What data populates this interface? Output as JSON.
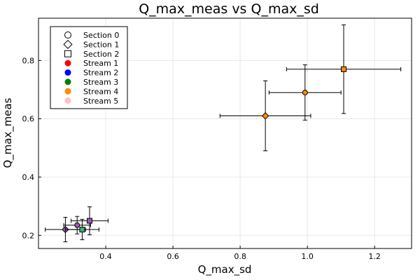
{
  "chart_data": {
    "type": "scatter",
    "title": "Q_max_meas vs Q_max_sd",
    "xlabel": "Q_max_sd",
    "ylabel": "Q_max_meas",
    "xlim": [
      0.2,
      1.31
    ],
    "ylim": [
      0.155,
      0.945
    ],
    "xticks": [
      0.4,
      0.6,
      0.8,
      1.0,
      1.2
    ],
    "xtick_labels": [
      "0.4",
      "0.6",
      "0.8",
      "1.0",
      "1.2"
    ],
    "yticks": [
      0.2,
      0.4,
      0.6,
      0.8
    ],
    "ytick_labels": [
      "0.2",
      "0.4",
      "0.6",
      "0.8"
    ],
    "grid": true,
    "legend_position": "top-left",
    "legend": [
      {
        "label": "Section 0",
        "marker": "circle",
        "filled": false,
        "color": "#000000"
      },
      {
        "label": "Section 1",
        "marker": "diamond",
        "filled": false,
        "color": "#000000"
      },
      {
        "label": "Section 2",
        "marker": "square",
        "filled": false,
        "color": "#000000"
      },
      {
        "label": "Stream 1",
        "marker": "dot",
        "filled": true,
        "color": "#ff0000"
      },
      {
        "label": "Stream 2",
        "marker": "dot",
        "filled": true,
        "color": "#0000ff"
      },
      {
        "label": "Stream 3",
        "marker": "dot",
        "filled": true,
        "color": "#008000"
      },
      {
        "label": "Stream 4",
        "marker": "dot",
        "filled": true,
        "color": "#ff8c00"
      },
      {
        "label": "Stream 5",
        "marker": "dot",
        "filled": true,
        "color": "#ffc0cb"
      }
    ],
    "points": [
      {
        "x": 0.28,
        "y": 0.22,
        "xerr": 0.06,
        "yerr": 0.042,
        "marker": "diamond",
        "color": "#9b59b6"
      },
      {
        "x": 0.315,
        "y": 0.235,
        "xerr": 0.04,
        "yerr": 0.03,
        "marker": "circle",
        "color": "#9b59b6"
      },
      {
        "x": 0.33,
        "y": 0.22,
        "xerr": 0.05,
        "yerr": 0.035,
        "marker": "square",
        "color": "#3cb371"
      },
      {
        "x": 0.352,
        "y": 0.25,
        "xerr": 0.055,
        "yerr": 0.048,
        "marker": "square",
        "color": "#9b59b6"
      },
      {
        "x": 0.875,
        "y": 0.61,
        "xerr": 0.135,
        "yerr": 0.12,
        "marker": "diamond",
        "color": "#ff8c00"
      },
      {
        "x": 0.993,
        "y": 0.69,
        "xerr": 0.107,
        "yerr": 0.095,
        "marker": "circle",
        "color": "#ff8c00"
      },
      {
        "x": 1.108,
        "y": 0.77,
        "xerr": 0.17,
        "yerr": 0.152,
        "marker": "square",
        "color": "#ff8c00"
      }
    ]
  }
}
